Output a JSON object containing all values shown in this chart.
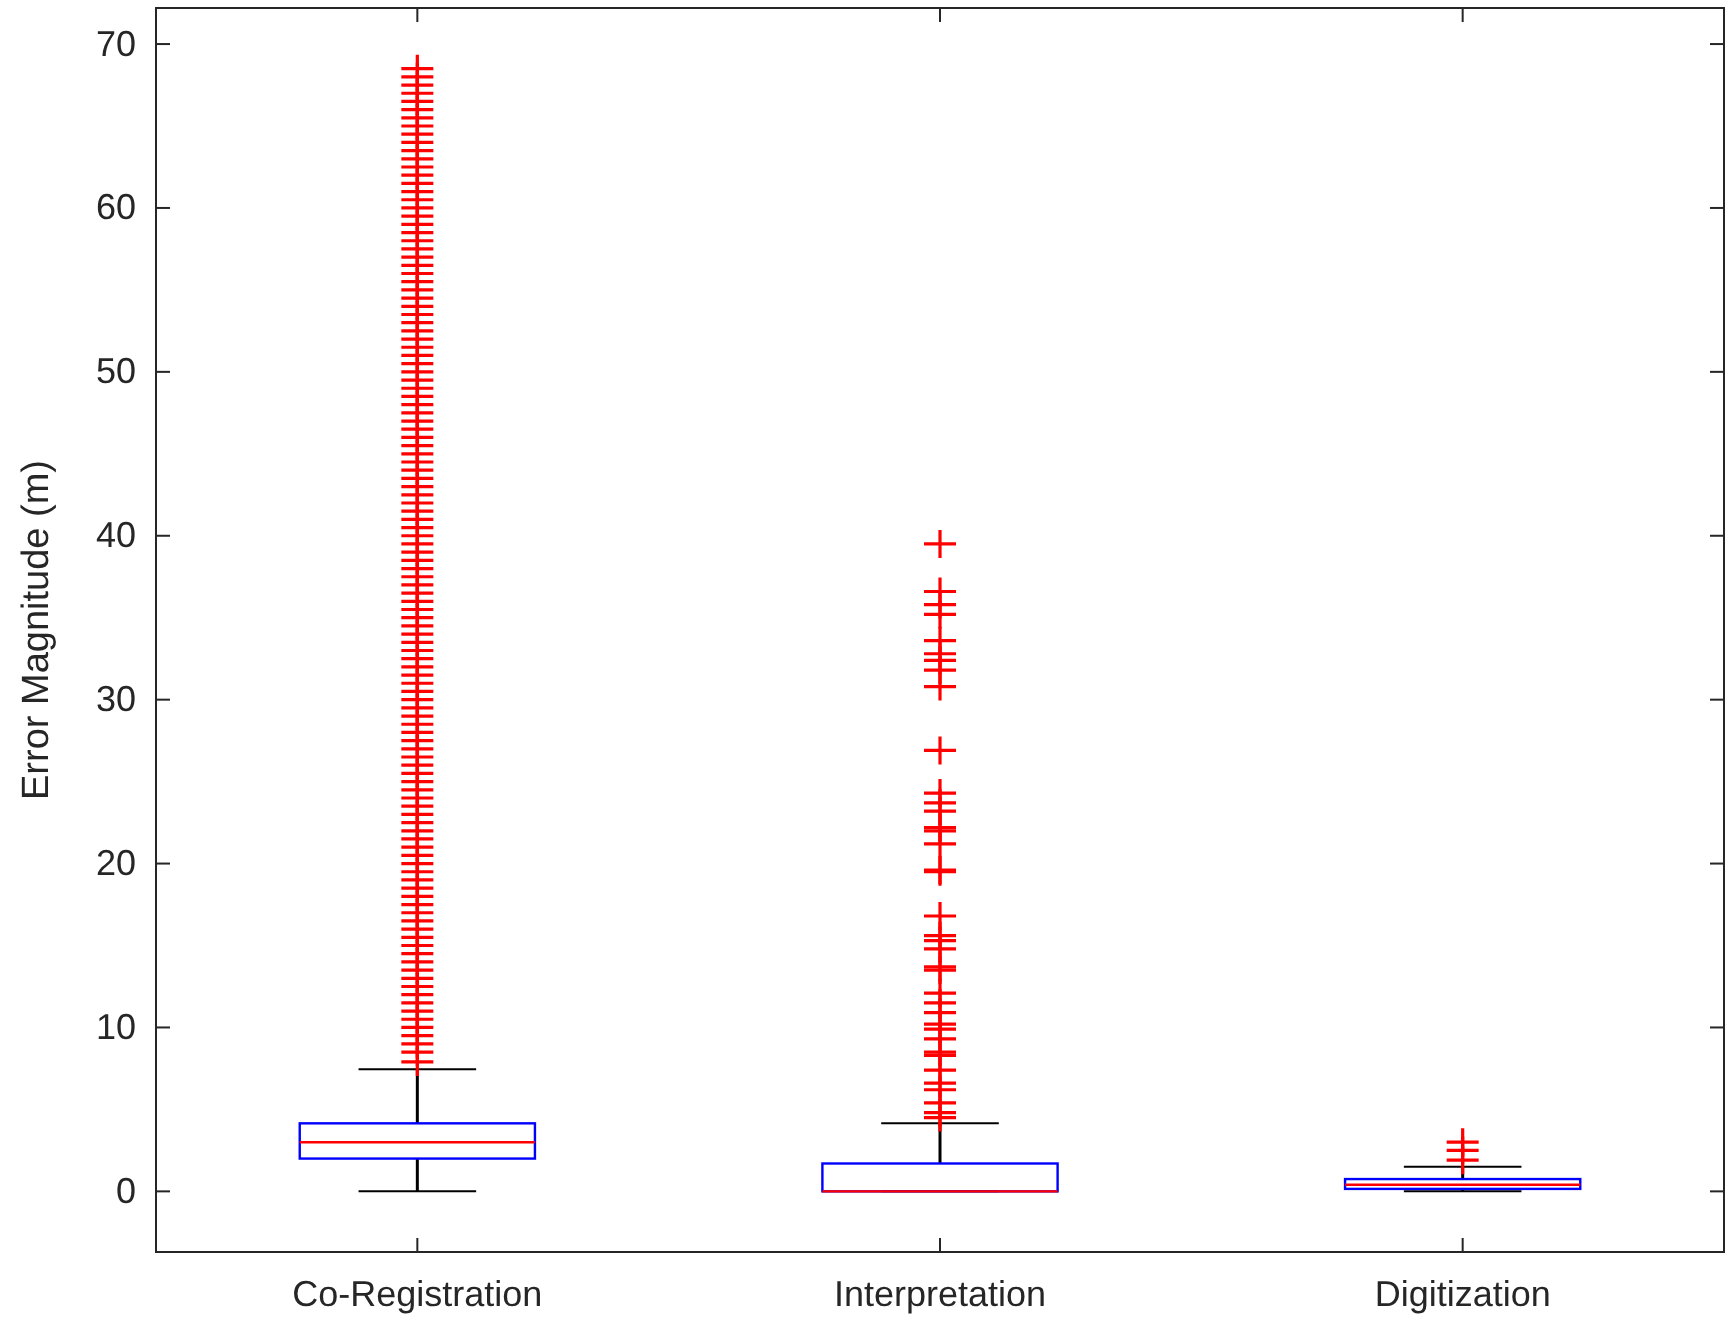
{
  "chart_data": {
    "type": "box",
    "ylabel": "Error Magnitude (m)",
    "categories": [
      "Co-Registration",
      "Interpretation",
      "Digitization"
    ],
    "ylim": [
      -3.7,
      72.2
    ],
    "yticks": [
      0,
      10,
      20,
      30,
      40,
      50,
      60,
      70
    ],
    "grid": false,
    "marker": "cross",
    "boxes": [
      {
        "low": 0,
        "q1": 2.0,
        "median": 3.0,
        "q3": 4.15,
        "high": 7.45,
        "outliers": [
          7.9,
          8.5,
          9,
          9.5,
          10,
          10.5,
          11,
          11.5,
          12,
          12.5,
          13,
          13.5,
          14,
          14.5,
          15,
          15.5,
          16,
          16.5,
          17,
          17.5,
          18,
          18.5,
          19,
          19.5,
          20,
          20.5,
          21,
          21.5,
          22,
          22.5,
          23,
          23.5,
          24,
          24.5,
          25,
          25.5,
          26,
          26.5,
          27,
          27.5,
          28,
          28.5,
          29,
          29.5,
          30,
          30.5,
          31,
          31.5,
          32,
          32.5,
          33,
          33.5,
          34,
          34.5,
          35,
          35.5,
          36,
          36.5,
          37,
          37.5,
          38,
          38.5,
          39,
          39.5,
          40,
          40.5,
          41,
          41.5,
          42,
          42.5,
          43,
          43.5,
          44,
          44.5,
          45,
          45.5,
          46,
          46.5,
          47,
          47.5,
          48,
          48.5,
          49,
          49.5,
          50,
          50.5,
          51,
          51.5,
          52,
          52.5,
          53,
          53.5,
          54,
          54.5,
          55,
          55.5,
          56,
          56.5,
          57,
          57.5,
          58,
          58.5,
          59,
          59.5,
          60,
          60.5,
          61,
          61.5,
          62,
          62.5,
          63,
          63.5,
          64,
          64.5,
          65,
          65.5,
          66,
          66.5,
          67,
          67.5,
          68,
          68.5
        ]
      },
      {
        "low": 0,
        "q1": 0,
        "median": 0,
        "q3": 1.7,
        "high": 4.15,
        "outliers": [
          4.5,
          4.8,
          5.4,
          6.2,
          6.6,
          7.4,
          8.3,
          8.5,
          9.3,
          9.9,
          10.2,
          10.9,
          11.5,
          12.1,
          13.5,
          13.7,
          14.8,
          15.3,
          15.6,
          16.8,
          19.5,
          19.6,
          21.2,
          22.0,
          22.2,
          23.2,
          23.7,
          24.3,
          26.9,
          30.8,
          31.8,
          32.4,
          32.8,
          33.6,
          35.2,
          35.8,
          36.6,
          39.5
        ]
      },
      {
        "low": 0,
        "q1": 0.15,
        "median": 0.4,
        "q3": 0.75,
        "high": 1.5,
        "outliers": [
          1.9,
          2.5,
          3.0
        ]
      }
    ]
  }
}
